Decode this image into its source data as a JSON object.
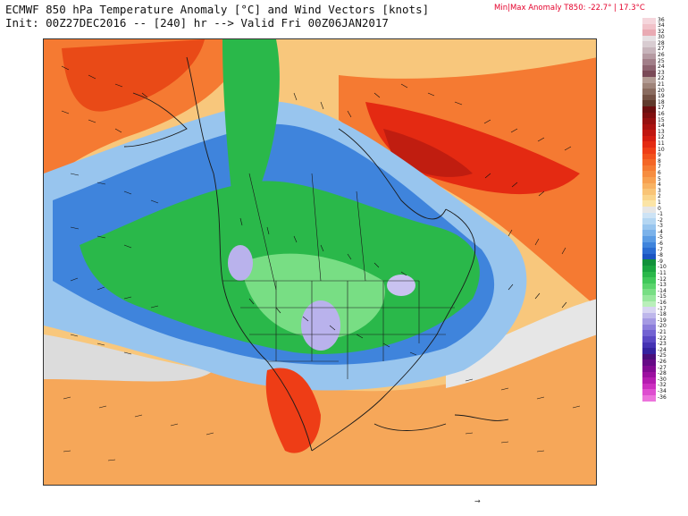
{
  "header": {
    "title_line1": "ECMWF 850 hPa Temperature Anomaly [°C] and Wind Vectors [knots]",
    "title_line2": "Init: 00Z27DEC2016 -- [240] hr --> Valid Fri 00Z06JAN2017",
    "minmax_label": "Min|Max Anomaly T850:",
    "min_value": "-22.7°",
    "separator": "|",
    "max_value": "17.3°C"
  },
  "colorbar": {
    "entries": [
      {
        "label": "36",
        "color": "#f5d6dc"
      },
      {
        "label": "34",
        "color": "#f1c2c9"
      },
      {
        "label": "32",
        "color": "#e9aab3"
      },
      {
        "label": "30",
        "color": "#e6e0e3"
      },
      {
        "label": "28",
        "color": "#d8ccd1"
      },
      {
        "label": "27",
        "color": "#c7b4bb"
      },
      {
        "label": "26",
        "color": "#b59aa2"
      },
      {
        "label": "25",
        "color": "#a27f89"
      },
      {
        "label": "24",
        "color": "#8e6470"
      },
      {
        "label": "23",
        "color": "#7a4a57"
      },
      {
        "label": "22",
        "color": "#b39c94"
      },
      {
        "label": "21",
        "color": "#9f8479"
      },
      {
        "label": "20",
        "color": "#8a6b5f"
      },
      {
        "label": "19",
        "color": "#755245"
      },
      {
        "label": "18",
        "color": "#5f3a2c"
      },
      {
        "label": "17",
        "color": "#6b0f0f"
      },
      {
        "label": "16",
        "color": "#800f0f"
      },
      {
        "label": "15",
        "color": "#961010"
      },
      {
        "label": "14",
        "color": "#ab1210"
      },
      {
        "label": "13",
        "color": "#c01610"
      },
      {
        "label": "12",
        "color": "#d41c10"
      },
      {
        "label": "11",
        "color": "#e42a12"
      },
      {
        "label": "10",
        "color": "#ee3d16"
      },
      {
        "label": "9",
        "color": "#f2521c"
      },
      {
        "label": "8",
        "color": "#f46626"
      },
      {
        "label": "7",
        "color": "#f57a32"
      },
      {
        "label": "6",
        "color": "#f68d40"
      },
      {
        "label": "5",
        "color": "#f7a050"
      },
      {
        "label": "4",
        "color": "#f8b262"
      },
      {
        "label": "3",
        "color": "#f9c476"
      },
      {
        "label": "2",
        "color": "#fad58c"
      },
      {
        "label": "1",
        "color": "#fbe4a6"
      },
      {
        "label": "0",
        "color": "#e6e6e6"
      },
      {
        "label": "-1",
        "color": "#cde3f5"
      },
      {
        "label": "-2",
        "color": "#b4d6f2"
      },
      {
        "label": "-3",
        "color": "#98c5ee"
      },
      {
        "label": "-4",
        "color": "#7bb2ea"
      },
      {
        "label": "-5",
        "color": "#5c9ce4"
      },
      {
        "label": "-6",
        "color": "#3f84dc"
      },
      {
        "label": "-7",
        "color": "#2a6cd2"
      },
      {
        "label": "-8",
        "color": "#1b55c2"
      },
      {
        "label": "-9",
        "color": "#11913a"
      },
      {
        "label": "-10",
        "color": "#1aa540"
      },
      {
        "label": "-11",
        "color": "#2ab84a"
      },
      {
        "label": "-12",
        "color": "#40c85a"
      },
      {
        "label": "-13",
        "color": "#5ad46c"
      },
      {
        "label": "-14",
        "color": "#78de84"
      },
      {
        "label": "-15",
        "color": "#98e79e"
      },
      {
        "label": "-16",
        "color": "#b9efba"
      },
      {
        "label": "-17",
        "color": "#d7d4f2"
      },
      {
        "label": "-18",
        "color": "#beb7eb"
      },
      {
        "label": "-19",
        "color": "#a59ae3"
      },
      {
        "label": "-20",
        "color": "#8c7edb"
      },
      {
        "label": "-21",
        "color": "#7262d2"
      },
      {
        "label": "-22",
        "color": "#5a48c4"
      },
      {
        "label": "-23",
        "color": "#4432b3"
      },
      {
        "label": "-24",
        "color": "#34229f"
      },
      {
        "label": "-25",
        "color": "#4a0f7a"
      },
      {
        "label": "-26",
        "color": "#660a86"
      },
      {
        "label": "-27",
        "color": "#820a92"
      },
      {
        "label": "-28",
        "color": "#9c10a0"
      },
      {
        "label": "-30",
        "color": "#b51cb0"
      },
      {
        "label": "-32",
        "color": "#cc2fc0"
      },
      {
        "label": "-34",
        "color": "#de4ed0"
      },
      {
        "label": "-36",
        "color": "#ec73dc"
      }
    ]
  },
  "map": {
    "colors": {
      "background": "#f8c77c",
      "ocean_orange": "#f58d44",
      "red": "#e94a17",
      "deep_red": "#c01d10",
      "blue_light": "#8fbfee",
      "blue": "#3f84dc",
      "blue_dark": "#1b55c2",
      "green": "#2ab84a",
      "green_light": "#78de84",
      "lavender": "#b9b2ec",
      "gray": "#dcdcdc",
      "border": "#1a1a1a"
    }
  },
  "footer": {
    "arrow_glyph": "→"
  }
}
